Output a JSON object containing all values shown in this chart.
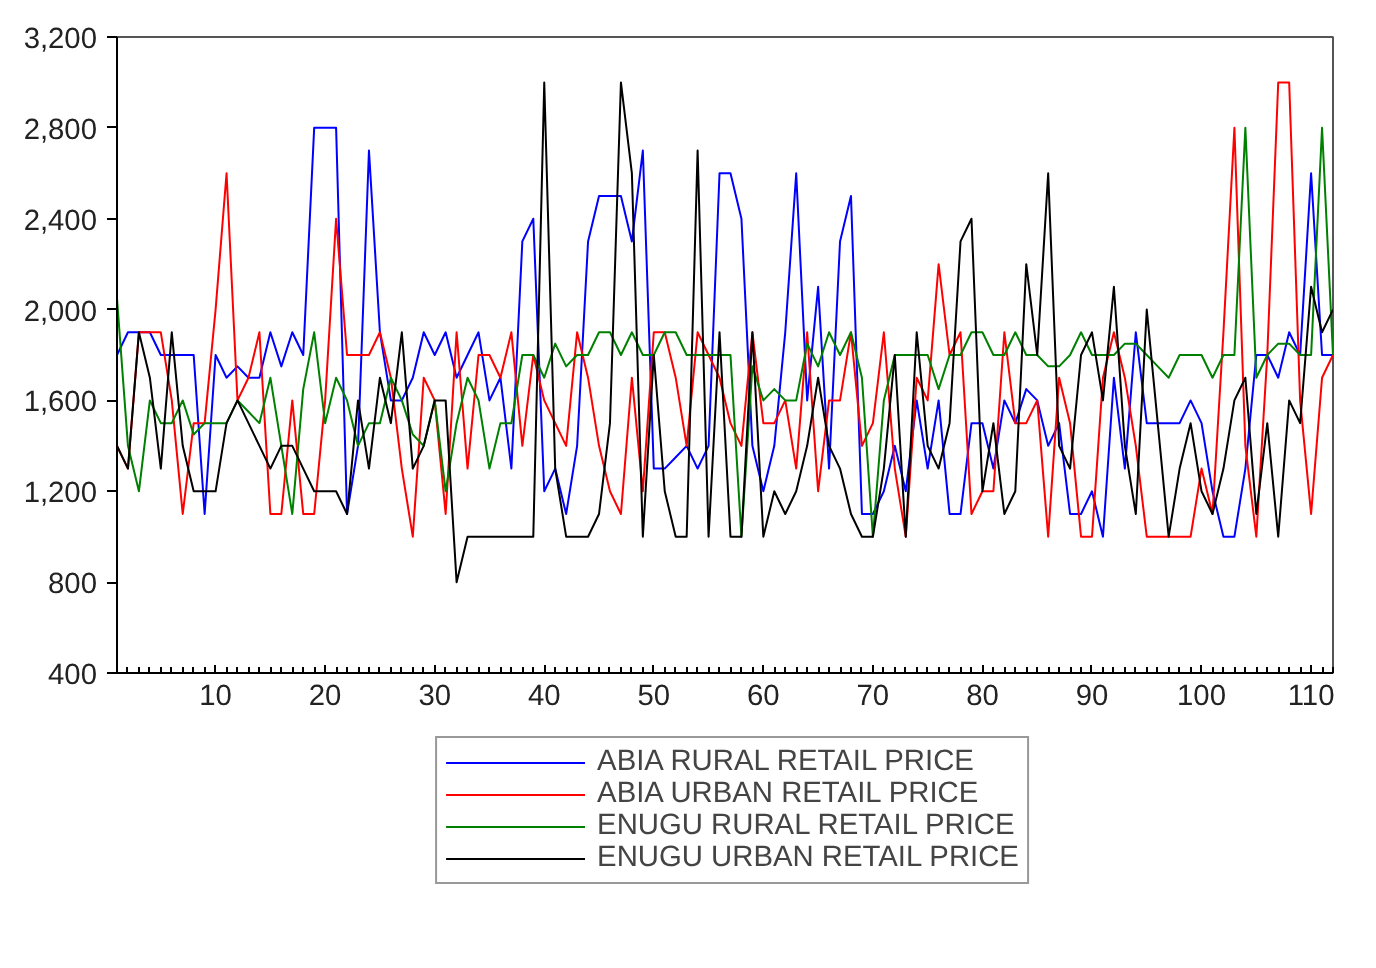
{
  "chart_data": {
    "type": "line",
    "legend": "bottom",
    "grid": false,
    "marker": "none",
    "line_style": "solid",
    "x": [
      1,
      2,
      3,
      4,
      5,
      6,
      7,
      8,
      9,
      10,
      11,
      12,
      13,
      14,
      15,
      16,
      17,
      18,
      19,
      20,
      21,
      22,
      23,
      24,
      25,
      26,
      27,
      28,
      29,
      30,
      31,
      32,
      33,
      34,
      35,
      36,
      37,
      38,
      39,
      40,
      41,
      42,
      43,
      44,
      45,
      46,
      47,
      48,
      49,
      50,
      51,
      52,
      53,
      54,
      55,
      56,
      57,
      58,
      59,
      60,
      61,
      62,
      63,
      64,
      65,
      66,
      67,
      68,
      69,
      70,
      71,
      72,
      73,
      74,
      75,
      76,
      77,
      78,
      79,
      80,
      81,
      82,
      83,
      84,
      85,
      86,
      87,
      88,
      89,
      90,
      91,
      92,
      93,
      94,
      95,
      96,
      97,
      98,
      99,
      100,
      101,
      102,
      103,
      104,
      105,
      106,
      107,
      108,
      109,
      110,
      111,
      112
    ],
    "xlim": [
      1,
      112
    ],
    "xticks": [
      10,
      20,
      30,
      40,
      50,
      60,
      70,
      80,
      90,
      100,
      110
    ],
    "ylim": [
      400,
      3200
    ],
    "yticks": [
      {
        "value": 400,
        "label": "400"
      },
      {
        "value": 800,
        "label": "800"
      },
      {
        "value": 1200,
        "label": "1,200"
      },
      {
        "value": 1600,
        "label": "1,600"
      },
      {
        "value": 2000,
        "label": "2,000"
      },
      {
        "value": 2400,
        "label": "2,400"
      },
      {
        "value": 2800,
        "label": "2,800"
      },
      {
        "value": 3200,
        "label": "3,200"
      }
    ],
    "series": [
      {
        "name": "ABIA RURAL RETAIL PRICE",
        "color": "#0000ff",
        "values": [
          1800,
          1900,
          1900,
          1900,
          1800,
          1800,
          1800,
          1800,
          1100,
          1800,
          1700,
          1750,
          1700,
          1700,
          1900,
          1750,
          1900,
          1800,
          2800,
          2800,
          2800,
          1100,
          1400,
          2700,
          1900,
          1600,
          1600,
          1700,
          1900,
          1800,
          1900,
          1700,
          1800,
          1900,
          1600,
          1700,
          1300,
          2300,
          2400,
          1200,
          1300,
          1100,
          1400,
          2300,
          2500,
          2500,
          2500,
          2300,
          2700,
          1300,
          1300,
          1350,
          1400,
          1300,
          1400,
          2600,
          2600,
          2400,
          1400,
          1200,
          1400,
          1900,
          2600,
          1600,
          2100,
          1300,
          2300,
          2500,
          1100,
          1100,
          1200,
          1400,
          1200,
          1600,
          1300,
          1600,
          1100,
          1100,
          1500,
          1500,
          1300,
          1600,
          1500,
          1650,
          1600,
          1400,
          1500,
          1100,
          1100,
          1200,
          1000,
          1700,
          1300,
          1900,
          1500,
          1500,
          1500,
          1500,
          1600,
          1500,
          1200,
          1000,
          1000,
          1300,
          1800,
          1800,
          1700,
          1900,
          1800,
          2600,
          1800,
          1800
        ]
      },
      {
        "name": "ABIA URBAN RETAIL PRICE",
        "color": "#ff0000",
        "values": [
          1400,
          1300,
          1900,
          1900,
          1900,
          1600,
          1100,
          1500,
          1500,
          2000,
          2600,
          1600,
          1700,
          1900,
          1100,
          1100,
          1600,
          1100,
          1100,
          1600,
          2400,
          1800,
          1800,
          1800,
          1900,
          1700,
          1300,
          1000,
          1700,
          1600,
          1100,
          1900,
          1300,
          1800,
          1800,
          1700,
          1900,
          1400,
          1800,
          1600,
          1500,
          1400,
          1900,
          1700,
          1400,
          1200,
          1100,
          1700,
          1200,
          1900,
          1900,
          1700,
          1400,
          1900,
          1800,
          1700,
          1500,
          1400,
          1900,
          1500,
          1500,
          1600,
          1300,
          1900,
          1200,
          1600,
          1600,
          1900,
          1400,
          1500,
          1900,
          1300,
          1000,
          1700,
          1600,
          2200,
          1800,
          1900,
          1100,
          1200,
          1200,
          1900,
          1500,
          1500,
          1600,
          1000,
          1700,
          1500,
          1000,
          1000,
          1700,
          1900,
          1700,
          1400,
          1000,
          1000,
          1000,
          1000,
          1000,
          1300,
          1100,
          1900,
          2800,
          1400,
          1000,
          1800,
          3000,
          3000,
          1600,
          1100,
          1700,
          1800
        ]
      },
      {
        "name": "ENUGU RURAL RETAIL PRICE",
        "color": "#008000",
        "values": [
          2050,
          1400,
          1200,
          1600,
          1500,
          1500,
          1600,
          1450,
          1500,
          1500,
          1500,
          1600,
          1550,
          1500,
          1700,
          1400,
          1100,
          1650,
          1900,
          1500,
          1700,
          1600,
          1400,
          1500,
          1500,
          1700,
          1600,
          1450,
          1400,
          1600,
          1200,
          1500,
          1700,
          1600,
          1300,
          1500,
          1500,
          1800,
          1800,
          1700,
          1850,
          1750,
          1800,
          1800,
          1900,
          1900,
          1800,
          1900,
          1800,
          1800,
          1900,
          1900,
          1800,
          1800,
          1800,
          1800,
          1800,
          1000,
          1750,
          1600,
          1650,
          1600,
          1600,
          1850,
          1750,
          1900,
          1800,
          1900,
          1700,
          1000,
          1600,
          1800,
          1800,
          1800,
          1800,
          1650,
          1800,
          1800,
          1900,
          1900,
          1800,
          1800,
          1900,
          1800,
          1800,
          1750,
          1750,
          1800,
          1900,
          1800,
          1800,
          1800,
          1850,
          1850,
          1800,
          1750,
          1700,
          1800,
          1800,
          1800,
          1700,
          1800,
          1800,
          2800,
          1700,
          1800,
          1850,
          1850,
          1800,
          1800,
          2800,
          1800
        ]
      },
      {
        "name": "ENUGU URBAN RETAIL PRICE",
        "color": "#000000",
        "values": [
          1400,
          1300,
          1900,
          1700,
          1300,
          1900,
          1400,
          1200,
          1200,
          1200,
          1500,
          1600,
          1500,
          1400,
          1300,
          1400,
          1400,
          1300,
          1200,
          1200,
          1200,
          1100,
          1600,
          1300,
          1700,
          1500,
          1900,
          1300,
          1400,
          1600,
          1600,
          800,
          1000,
          1000,
          1000,
          1000,
          1000,
          1000,
          1000,
          3000,
          1300,
          1000,
          1000,
          1000,
          1100,
          1500,
          3000,
          2600,
          1000,
          1800,
          1200,
          1000,
          1000,
          2700,
          1000,
          1900,
          1000,
          1000,
          1900,
          1000,
          1200,
          1100,
          1200,
          1400,
          1700,
          1400,
          1300,
          1100,
          1000,
          1000,
          1300,
          1800,
          1000,
          1900,
          1400,
          1300,
          1500,
          2300,
          2400,
          1200,
          1500,
          1100,
          1200,
          2200,
          1800,
          2600,
          1400,
          1300,
          1800,
          1900,
          1600,
          2100,
          1400,
          1100,
          2000,
          1500,
          1000,
          1300,
          1500,
          1200,
          1100,
          1300,
          1600,
          1700,
          1100,
          1500,
          1000,
          1600,
          1500,
          2100,
          1900,
          2000
        ]
      }
    ]
  }
}
